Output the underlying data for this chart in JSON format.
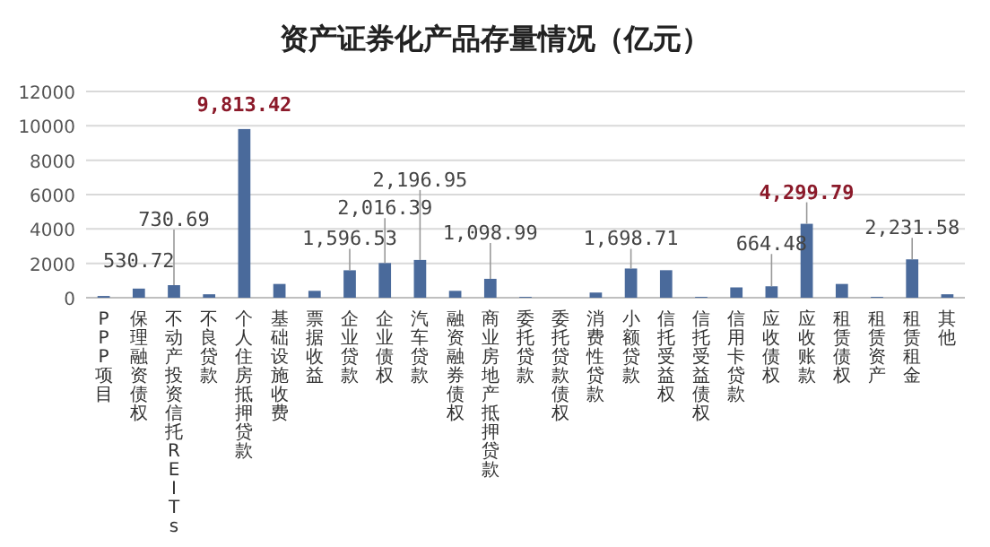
{
  "chart_data": {
    "type": "bar",
    "title": "资产证券化产品存量情况（亿元）",
    "categories": [
      "PPP项目",
      "保理融资债权",
      "不动产投资信托REITs",
      "不良贷款",
      "个人住房抵押贷款",
      "基础设施收费",
      "票据收益",
      "企业贷款",
      "企业债权",
      "汽车贷款",
      "融资融券债权",
      "商业房地产抵押贷款",
      "委托贷款",
      "委托贷款债权",
      "消费性贷款",
      "小额贷款",
      "信托受益权",
      "信托受益债权",
      "信用卡贷款",
      "应收债权",
      "应收账款",
      "租赁债权",
      "租赁资产",
      "租赁租金",
      "其他"
    ],
    "values": [
      100,
      530.72,
      730.69,
      200,
      9813.42,
      800,
      400,
      1596.53,
      2016.39,
      2196.95,
      400,
      1098.99,
      50,
      0,
      300,
      1698.71,
      1600,
      50,
      600,
      664.48,
      4299.79,
      800,
      50,
      2231.58,
      200
    ],
    "value_labels": [
      null,
      "530.72",
      "730.69",
      null,
      "9,813.42",
      null,
      null,
      "1,596.53",
      "2,016.39",
      "2,196.95",
      null,
      "1,098.99",
      null,
      null,
      null,
      "1,698.71",
      null,
      null,
      null,
      "664.48",
      "4,299.79",
      null,
      null,
      "2,231.58",
      null
    ],
    "color": "#4a6a9b",
    "ylim": [
      0,
      12000
    ],
    "yticks": [
      0,
      2000,
      4000,
      6000,
      8000,
      10000,
      12000
    ],
    "grid": "y"
  }
}
